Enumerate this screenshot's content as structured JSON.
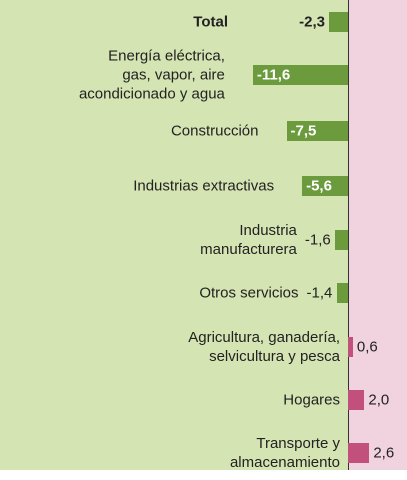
{
  "chart_data": {
    "type": "bar",
    "orientation": "horizontal",
    "categories": [
      "Total",
      "Energía eléctrica,\ngas, vapor, aire\nacondicionado y agua",
      "Construcción",
      "Industrias extractivas",
      "Industria\nmanufacturera",
      "Otros servicios",
      "Agricultura, ganadería,\nselvicultura y pesca",
      "Hogares",
      "Transporte y\nalmacenamiento"
    ],
    "values": [
      -2.3,
      -11.6,
      -7.5,
      -5.6,
      -1.6,
      -1.4,
      0.6,
      2.0,
      2.6
    ],
    "value_labels": [
      "-2,3",
      "-11,6",
      "-7,5",
      "-5,6",
      "-1,6",
      "-1,4",
      "0,6",
      "2,0",
      "2,6"
    ],
    "colors": [
      "#6b9b3c",
      "#6b9b3c",
      "#6b9b3c",
      "#6b9b3c",
      "#6b9b3c",
      "#6b9b3c",
      "#c2507c",
      "#c2507c",
      "#c2507c"
    ]
  }
}
